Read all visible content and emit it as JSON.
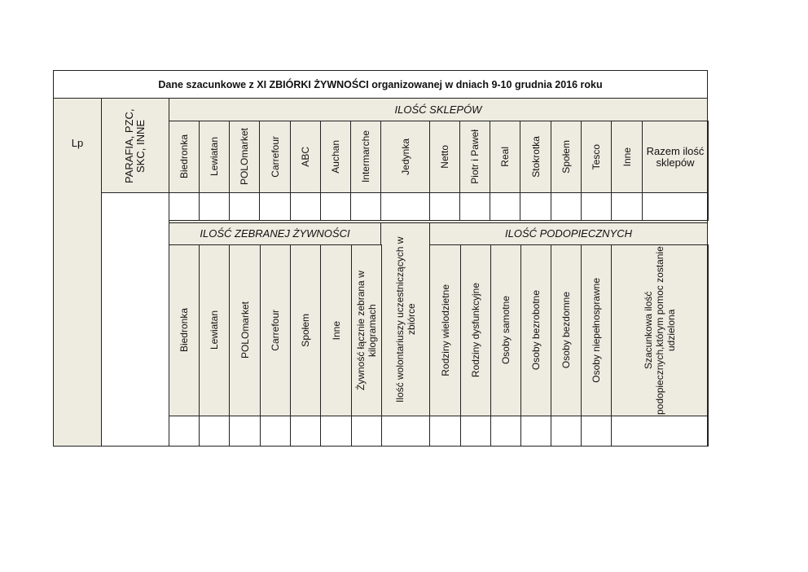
{
  "title": "Dane szacunkowe z XI ZBIÓRKI ŻYWNOŚCI organizowanej w dniach 9-10 grudnia 2016 roku",
  "lp": "Lp",
  "parafia": "PARAFIA, PZC, SKC, INNE",
  "shops": {
    "heading": "ILOŚĆ SKLEPÓW",
    "columns": [
      "Biedronka",
      "Lewiatan",
      "POLOmarket",
      "Carrefour",
      "ABC",
      "Auchan",
      "Intermarche",
      "Jedynka",
      "Netto",
      "Piotr i Paweł",
      "Real",
      "Stokrotka",
      "Społem",
      "Tesco",
      "Inne",
      "Razem ilość sklepów"
    ]
  },
  "food": {
    "heading": "ILOŚĆ ZEBRANEJ ŻYWNOŚCI",
    "columns": [
      "Biedronka",
      "Lewiatan",
      "POLOmarket",
      "Carrefour",
      "Społem",
      "Inne",
      "Żywność łącznie zebrana w kilogramach"
    ]
  },
  "volunteers": "Ilość wolontariuszy uczestniczących w zbiórce",
  "beneficiaries": {
    "heading": "ILOŚĆ PODOPIECZNYCH",
    "columns": [
      "Rodziny wielodzietne",
      "Rodziny dysfunkcyjne",
      "Osoby samotne",
      "Osoby bezrobotne",
      "Osoby bezdomne",
      "Osoby  niepełnosprawne",
      "Szacunkowa ilość podopiecznych,którym pomoc zostanie udzielona"
    ]
  }
}
